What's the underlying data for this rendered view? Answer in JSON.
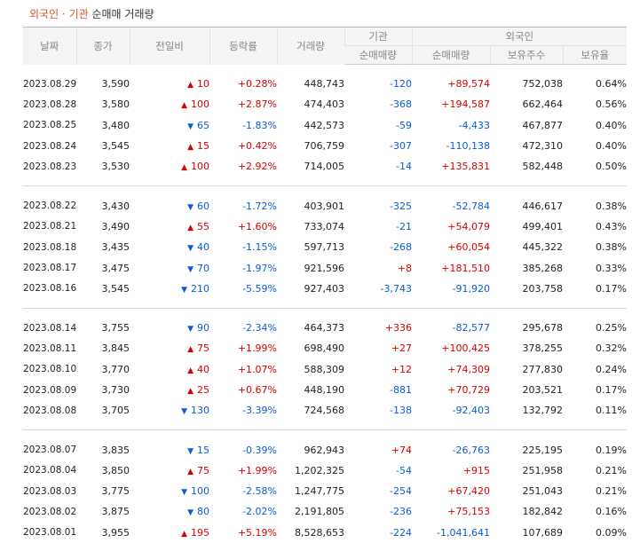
{
  "title": {
    "highlight": "외국인 · 기관",
    "rest": " 순매매 거래량"
  },
  "headers": {
    "date": "날짜",
    "close": "종가",
    "change": "전일비",
    "rate": "등락률",
    "volume": "거래량",
    "institution": "기관",
    "foreign": "외국인",
    "inst_net": "순매매량",
    "frgn_net": "순매매량",
    "frgn_hold": "보유주수",
    "frgn_ratio": "보유율"
  },
  "colors": {
    "up": "#d60000",
    "down": "#0a5bd6",
    "title_highlight": "#d8542a"
  },
  "groups": [
    [
      {
        "date": "2023.08.29",
        "close": "3,590",
        "dir": "up",
        "change": "10",
        "rate": "+0.28%",
        "volume": "448,743",
        "inst": "-120",
        "frgn": "+89,574",
        "hold": "752,038",
        "ratio": "0.64%"
      },
      {
        "date": "2023.08.28",
        "close": "3,580",
        "dir": "up",
        "change": "100",
        "rate": "+2.87%",
        "volume": "474,403",
        "inst": "-368",
        "frgn": "+194,587",
        "hold": "662,464",
        "ratio": "0.56%"
      },
      {
        "date": "2023.08.25",
        "close": "3,480",
        "dir": "down",
        "change": "65",
        "rate": "-1.83%",
        "volume": "442,573",
        "inst": "-59",
        "frgn": "-4,433",
        "hold": "467,877",
        "ratio": "0.40%"
      },
      {
        "date": "2023.08.24",
        "close": "3,545",
        "dir": "up",
        "change": "15",
        "rate": "+0.42%",
        "volume": "706,759",
        "inst": "-307",
        "frgn": "-110,138",
        "hold": "472,310",
        "ratio": "0.40%"
      },
      {
        "date": "2023.08.23",
        "close": "3,530",
        "dir": "up",
        "change": "100",
        "rate": "+2.92%",
        "volume": "714,005",
        "inst": "-14",
        "frgn": "+135,831",
        "hold": "582,448",
        "ratio": "0.50%"
      }
    ],
    [
      {
        "date": "2023.08.22",
        "close": "3,430",
        "dir": "down",
        "change": "60",
        "rate": "-1.72%",
        "volume": "403,901",
        "inst": "-325",
        "frgn": "-52,784",
        "hold": "446,617",
        "ratio": "0.38%"
      },
      {
        "date": "2023.08.21",
        "close": "3,490",
        "dir": "up",
        "change": "55",
        "rate": "+1.60%",
        "volume": "733,074",
        "inst": "-21",
        "frgn": "+54,079",
        "hold": "499,401",
        "ratio": "0.43%"
      },
      {
        "date": "2023.08.18",
        "close": "3,435",
        "dir": "down",
        "change": "40",
        "rate": "-1.15%",
        "volume": "597,713",
        "inst": "-268",
        "frgn": "+60,054",
        "hold": "445,322",
        "ratio": "0.38%"
      },
      {
        "date": "2023.08.17",
        "close": "3,475",
        "dir": "down",
        "change": "70",
        "rate": "-1.97%",
        "volume": "921,596",
        "inst": "+8",
        "frgn": "+181,510",
        "hold": "385,268",
        "ratio": "0.33%"
      },
      {
        "date": "2023.08.16",
        "close": "3,545",
        "dir": "down",
        "change": "210",
        "rate": "-5.59%",
        "volume": "927,403",
        "inst": "-3,743",
        "frgn": "-91,920",
        "hold": "203,758",
        "ratio": "0.17%"
      }
    ],
    [
      {
        "date": "2023.08.14",
        "close": "3,755",
        "dir": "down",
        "change": "90",
        "rate": "-2.34%",
        "volume": "464,373",
        "inst": "+336",
        "frgn": "-82,577",
        "hold": "295,678",
        "ratio": "0.25%"
      },
      {
        "date": "2023.08.11",
        "close": "3,845",
        "dir": "up",
        "change": "75",
        "rate": "+1.99%",
        "volume": "698,490",
        "inst": "+27",
        "frgn": "+100,425",
        "hold": "378,255",
        "ratio": "0.32%"
      },
      {
        "date": "2023.08.10",
        "close": "3,770",
        "dir": "up",
        "change": "40",
        "rate": "+1.07%",
        "volume": "588,309",
        "inst": "+12",
        "frgn": "+74,309",
        "hold": "277,830",
        "ratio": "0.24%"
      },
      {
        "date": "2023.08.09",
        "close": "3,730",
        "dir": "up",
        "change": "25",
        "rate": "+0.67%",
        "volume": "448,190",
        "inst": "-881",
        "frgn": "+70,729",
        "hold": "203,521",
        "ratio": "0.17%"
      },
      {
        "date": "2023.08.08",
        "close": "3,705",
        "dir": "down",
        "change": "130",
        "rate": "-3.39%",
        "volume": "724,568",
        "inst": "-138",
        "frgn": "-92,403",
        "hold": "132,792",
        "ratio": "0.11%"
      }
    ],
    [
      {
        "date": "2023.08.07",
        "close": "3,835",
        "dir": "down",
        "change": "15",
        "rate": "-0.39%",
        "volume": "962,943",
        "inst": "+74",
        "frgn": "-26,763",
        "hold": "225,195",
        "ratio": "0.19%"
      },
      {
        "date": "2023.08.04",
        "close": "3,850",
        "dir": "up",
        "change": "75",
        "rate": "+1.99%",
        "volume": "1,202,325",
        "inst": "-54",
        "frgn": "+915",
        "hold": "251,958",
        "ratio": "0.21%"
      },
      {
        "date": "2023.08.03",
        "close": "3,775",
        "dir": "down",
        "change": "100",
        "rate": "-2.58%",
        "volume": "1,247,775",
        "inst": "-254",
        "frgn": "+67,420",
        "hold": "251,043",
        "ratio": "0.21%"
      },
      {
        "date": "2023.08.02",
        "close": "3,875",
        "dir": "down",
        "change": "80",
        "rate": "-2.02%",
        "volume": "2,191,805",
        "inst": "-236",
        "frgn": "+75,153",
        "hold": "182,842",
        "ratio": "0.16%"
      },
      {
        "date": "2023.08.01",
        "close": "3,955",
        "dir": "up",
        "change": "195",
        "rate": "+5.19%",
        "volume": "8,528,653",
        "inst": "-224",
        "frgn": "-1,041,641",
        "hold": "107,689",
        "ratio": "0.09%"
      }
    ]
  ]
}
